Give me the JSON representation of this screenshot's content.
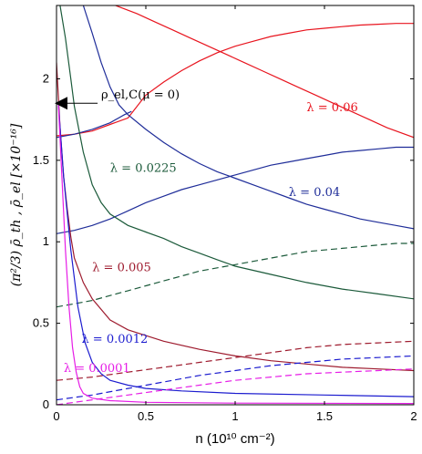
{
  "chart_data": {
    "type": "line",
    "xlabel": "n (10¹⁰ cm⁻²)",
    "ylabel": "(π²/3) ρ̄_th ,  ρ̄_el  [×10⁻¹⁶]",
    "xlim": [
      0,
      2
    ],
    "ylim": [
      0,
      2.45
    ],
    "x_ticks": [
      "0",
      "0.5",
      "1",
      "1.5",
      "2"
    ],
    "y_ticks": [
      "0",
      "0.5",
      "1",
      "1.5",
      "2"
    ],
    "x_tick_values": [
      0,
      0.5,
      1,
      1.5,
      2
    ],
    "y_tick_values": [
      0,
      0.5,
      1,
      1.5,
      2
    ],
    "grid": false,
    "series": [
      {
        "name": "λ = 0.06",
        "color": "#e8141e",
        "dash": "solid",
        "x": [
          0,
          0.1,
          0.2,
          0.3,
          0.4,
          0.5,
          0.6,
          0.7,
          0.8,
          0.9,
          1.0,
          1.1,
          1.2,
          1.3,
          1.4,
          1.5,
          1.6,
          1.7,
          1.8,
          1.9,
          2.0
        ],
        "y": [
          1.65,
          1.66,
          1.68,
          1.72,
          1.76,
          1.9,
          1.98,
          2.05,
          2.11,
          2.16,
          2.2,
          2.23,
          2.26,
          2.28,
          2.3,
          2.31,
          2.32,
          2.33,
          2.335,
          2.34,
          2.34
        ]
      },
      {
        "name": "λ = 0.06",
        "color": "#e8141e",
        "dash": "solid",
        "x": [
          0.33,
          0.45,
          0.55,
          0.65,
          0.75,
          0.85,
          0.95,
          1.05,
          1.15,
          1.25,
          1.35,
          1.45,
          1.55,
          1.65,
          1.75,
          1.85,
          2.0
        ],
        "y": [
          2.45,
          2.4,
          2.35,
          2.3,
          2.25,
          2.2,
          2.15,
          2.1,
          2.05,
          2.0,
          1.95,
          1.9,
          1.85,
          1.8,
          1.75,
          1.7,
          1.64
        ]
      },
      {
        "name": "λ = 0.04",
        "color": "#1f2d99",
        "dash": "solid",
        "x": [
          0,
          0.1,
          0.2,
          0.3,
          0.4,
          0.5,
          0.6,
          0.7,
          0.8,
          0.9,
          1.0,
          1.1,
          1.2,
          1.3,
          1.4,
          1.5,
          1.6,
          1.7,
          1.8,
          1.9,
          2.0
        ],
        "y": [
          1.05,
          1.07,
          1.1,
          1.14,
          1.19,
          1.24,
          1.28,
          1.32,
          1.35,
          1.38,
          1.41,
          1.44,
          1.47,
          1.49,
          1.51,
          1.53,
          1.55,
          1.56,
          1.57,
          1.58,
          1.58
        ]
      },
      {
        "name": "λ = 0.04",
        "color": "#1f2d99",
        "dash": "solid",
        "x": [
          0.15,
          0.2,
          0.25,
          0.3,
          0.35,
          0.4,
          0.5,
          0.6,
          0.7,
          0.8,
          0.9,
          1.0,
          1.1,
          1.2,
          1.3,
          1.4,
          1.5,
          1.6,
          1.7,
          1.8,
          1.9,
          2.0
        ],
        "y": [
          2.45,
          2.28,
          2.1,
          1.95,
          1.84,
          1.78,
          1.69,
          1.61,
          1.54,
          1.48,
          1.43,
          1.39,
          1.35,
          1.31,
          1.27,
          1.23,
          1.2,
          1.17,
          1.14,
          1.12,
          1.1,
          1.08
        ]
      },
      {
        "name": "λ = 0.04",
        "color": "#1f2d99",
        "dash": "solid",
        "x": [
          0,
          0.1,
          0.2,
          0.3,
          0.38,
          0.42
        ],
        "y": [
          1.64,
          1.66,
          1.69,
          1.73,
          1.78,
          1.8
        ]
      },
      {
        "name": "λ = 0.0225",
        "color": "#1b5a3a",
        "dash": "solid",
        "x": [
          0.02,
          0.05,
          0.08,
          0.1,
          0.15,
          0.2,
          0.25,
          0.3,
          0.4,
          0.5,
          0.6,
          0.7,
          0.8,
          0.9,
          1.0,
          1.2,
          1.4,
          1.6,
          1.8,
          2.0
        ],
        "y": [
          2.45,
          2.25,
          2.0,
          1.83,
          1.55,
          1.35,
          1.24,
          1.17,
          1.1,
          1.06,
          1.02,
          0.97,
          0.93,
          0.89,
          0.85,
          0.8,
          0.75,
          0.71,
          0.68,
          0.65
        ]
      },
      {
        "name": "λ = 0.0225",
        "color": "#1b5a3a",
        "dash": "dashed",
        "x": [
          0,
          0.1,
          0.2,
          0.3,
          0.4,
          0.5,
          0.6,
          0.7,
          0.8,
          0.9,
          1.0,
          1.1,
          1.2,
          1.3,
          1.4,
          1.5,
          1.6,
          1.7,
          1.8,
          1.9,
          2.0
        ],
        "y": [
          0.6,
          0.62,
          0.64,
          0.67,
          0.7,
          0.73,
          0.76,
          0.79,
          0.82,
          0.84,
          0.86,
          0.88,
          0.9,
          0.92,
          0.94,
          0.95,
          0.96,
          0.97,
          0.98,
          0.99,
          0.99
        ]
      },
      {
        "name": "λ = 0.005",
        "color": "#9e1b2e",
        "dash": "solid",
        "x": [
          0,
          0.02,
          0.04,
          0.06,
          0.08,
          0.1,
          0.15,
          0.2,
          0.3,
          0.4,
          0.6,
          0.8,
          1.0,
          1.2,
          1.4,
          1.6,
          1.8,
          2.0
        ],
        "y": [
          2.1,
          1.7,
          1.4,
          1.2,
          1.03,
          0.9,
          0.75,
          0.65,
          0.52,
          0.46,
          0.39,
          0.34,
          0.3,
          0.27,
          0.25,
          0.23,
          0.22,
          0.21
        ]
      },
      {
        "name": "λ = 0.005",
        "color": "#9e1b2e",
        "dash": "dashed",
        "x": [
          0,
          0.2,
          0.4,
          0.6,
          0.8,
          1.0,
          1.2,
          1.4,
          1.6,
          1.8,
          2.0
        ],
        "y": [
          0.15,
          0.17,
          0.2,
          0.23,
          0.26,
          0.29,
          0.32,
          0.35,
          0.37,
          0.38,
          0.39
        ]
      },
      {
        "name": "λ = 0.0012",
        "color": "#1c1ccf",
        "dash": "solid",
        "x": [
          0.01,
          0.04,
          0.08,
          0.12,
          0.16,
          0.2,
          0.25,
          0.3,
          0.4,
          0.5,
          0.7,
          1.0,
          1.5,
          2.0
        ],
        "y": [
          1.85,
          1.4,
          0.95,
          0.6,
          0.38,
          0.26,
          0.19,
          0.15,
          0.12,
          0.1,
          0.085,
          0.07,
          0.06,
          0.05
        ]
      },
      {
        "name": "λ = 0.0012",
        "color": "#1c1ccf",
        "dash": "dashed",
        "x": [
          0,
          0.2,
          0.4,
          0.6,
          0.8,
          1.0,
          1.2,
          1.4,
          1.6,
          1.8,
          2.0
        ],
        "y": [
          0.03,
          0.06,
          0.1,
          0.14,
          0.18,
          0.21,
          0.24,
          0.26,
          0.28,
          0.29,
          0.3
        ]
      },
      {
        "name": "λ = 0.0001",
        "color": "#e61ee6",
        "dash": "solid",
        "x": [
          0.01,
          0.03,
          0.05,
          0.07,
          0.09,
          0.11,
          0.13,
          0.15,
          0.2,
          0.3,
          0.5,
          1.0,
          2.0
        ],
        "y": [
          1.85,
          1.4,
          0.95,
          0.6,
          0.35,
          0.2,
          0.11,
          0.07,
          0.04,
          0.025,
          0.015,
          0.01,
          0.008
        ]
      },
      {
        "name": "λ = 0.0001",
        "color": "#e61ee6",
        "dash": "dashed",
        "x": [
          0,
          0.2,
          0.4,
          0.6,
          0.8,
          1.0,
          1.2,
          1.4,
          1.6,
          1.8,
          2.0
        ],
        "y": [
          0.0,
          0.03,
          0.06,
          0.09,
          0.12,
          0.15,
          0.17,
          0.19,
          0.2,
          0.21,
          0.22
        ]
      }
    ],
    "annotations": [
      {
        "text": "λ = 0.06",
        "x": 1.4,
        "y": 1.8,
        "color": "#e8141e"
      },
      {
        "text": "λ = 0.04",
        "x": 1.3,
        "y": 1.28,
        "color": "#1f2d99"
      },
      {
        "text": "λ = 0.0225",
        "x": 0.3,
        "y": 1.43,
        "color": "#1b5a3a"
      },
      {
        "text": "λ = 0.005",
        "x": 0.2,
        "y": 0.82,
        "color": "#9e1b2e"
      },
      {
        "text": "λ = 0.0012",
        "x": 0.14,
        "y": 0.38,
        "color": "#1c1ccf"
      },
      {
        "text": "λ = 0.0001",
        "x": 0.04,
        "y": 0.2,
        "color": "#e61ee6"
      },
      {
        "text": "ρ_el,C(μ = 0)",
        "x": 0.25,
        "y": 1.88,
        "color": "#000000"
      }
    ],
    "marker": {
      "x": 0.0,
      "y": 1.85
    }
  }
}
